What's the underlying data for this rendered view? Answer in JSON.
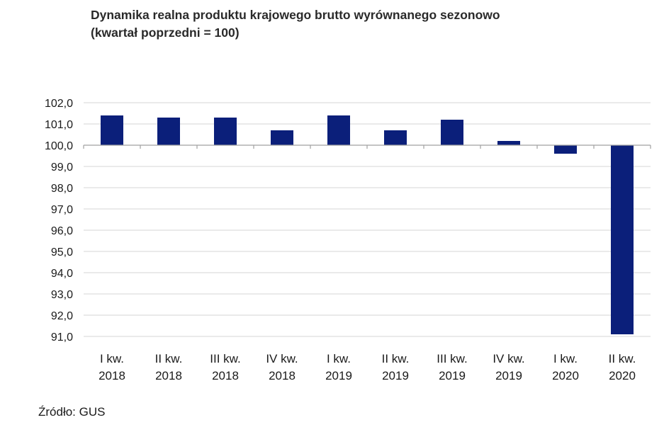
{
  "title": {
    "line1": "Dynamika realna produktu krajowego brutto wyrównanego sezonowo",
    "line2": "(kwartał poprzedni = 100)"
  },
  "source": "Źródło: GUS",
  "colors": {
    "bar": "#0b1f7a",
    "grid": "#d6d6d6",
    "axis": "#a0a0a0"
  },
  "chart_data": {
    "type": "bar",
    "title": "Dynamika realna produktu krajowego brutto wyrównanego sezonowo (kwartał poprzedni = 100)",
    "xlabel": "",
    "ylabel": "",
    "baseline": 100.0,
    "ylim": [
      91.0,
      102.0
    ],
    "yticks": [
      "102,0",
      "101,0",
      "100,0",
      "99,0",
      "98,0",
      "97,0",
      "96,0",
      "95,0",
      "94,0",
      "93,0",
      "92,0",
      "91,0"
    ],
    "categories": [
      [
        "I kw.",
        "2018"
      ],
      [
        "II kw.",
        "2018"
      ],
      [
        "III kw.",
        "2018"
      ],
      [
        "IV kw.",
        "2018"
      ],
      [
        "I kw.",
        "2019"
      ],
      [
        "II kw.",
        "2019"
      ],
      [
        "III kw.",
        "2019"
      ],
      [
        "IV kw.",
        "2019"
      ],
      [
        "I kw.",
        "2020"
      ],
      [
        "II kw.",
        "2020"
      ]
    ],
    "values": [
      101.4,
      101.3,
      101.3,
      100.7,
      101.4,
      100.7,
      101.2,
      100.2,
      99.6,
      91.1
    ]
  }
}
